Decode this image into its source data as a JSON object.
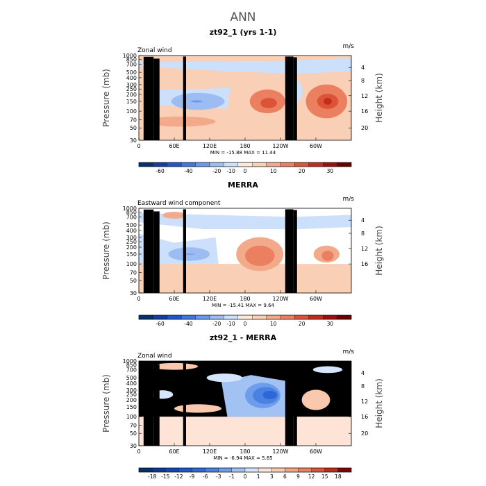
{
  "figure": {
    "suptitle": "ANN"
  },
  "panels": [
    {
      "title": "zt92_1 (yrs 1-1)",
      "left_label": "Zonal wind",
      "units": "m/s",
      "min_max": "MIN = -15.88   MAX =  11.44",
      "colorbar_ticks": [
        "-60",
        "-40",
        "-20",
        "-10",
        "0",
        "10",
        "20",
        "30"
      ],
      "colors": [
        "#08306b",
        "#123ea0",
        "#1f57c8",
        "#3f77dd",
        "#6a98ea",
        "#9cbcf2",
        "#cde0fb",
        "#fde9dc",
        "#f9cfb6",
        "#f2aa8a",
        "#ea8060",
        "#dd5338",
        "#c42b1c",
        "#9c0f0f",
        "#6b0000"
      ],
      "right_ticks": [
        "20",
        "16",
        "12",
        "8",
        "4"
      ],
      "height_min_mb": 30
    },
    {
      "title": "MERRA",
      "left_label": "Eastward wind component",
      "units": "m/s",
      "min_max": "MIN = -15.41   MAX =   9.64",
      "colorbar_ticks": [
        "-60",
        "-40",
        "-20",
        "-10",
        "0",
        "10",
        "20",
        "30"
      ],
      "colors": [
        "#08306b",
        "#123ea0",
        "#1f57c8",
        "#3f77dd",
        "#6a98ea",
        "#9cbcf2",
        "#cde0fb",
        "#fde9dc",
        "#f9cfb6",
        "#f2aa8a",
        "#ea8060",
        "#dd5338",
        "#c42b1c",
        "#9c0f0f",
        "#6b0000"
      ],
      "right_ticks": [
        "16",
        "12",
        "8",
        "4"
      ],
      "height_min_mb": 100
    },
    {
      "title": "zt92_1 - MERRA",
      "left_label": "Zonal wind",
      "units": "m/s",
      "min_max": "MIN =  -6.94   MAX =   5.85",
      "colorbar_ticks": [
        "-18",
        "-15",
        "-12",
        "-9",
        "-6",
        "-3",
        "-1",
        "0",
        "1",
        "3",
        "6",
        "9",
        "12",
        "15",
        "18"
      ],
      "colors": [
        "#08306b",
        "#0d3a94",
        "#1448b8",
        "#1f57c8",
        "#2e68d6",
        "#4a82e2",
        "#6f9ded",
        "#a3c2f4",
        "#d5e5fb",
        "#fde4d6",
        "#f9c8ad",
        "#f2a584",
        "#e9805f",
        "#da5536",
        "#c02c1c",
        "#7a0606"
      ],
      "right_ticks": [
        "20",
        "16",
        "12",
        "8",
        "4"
      ],
      "height_min_mb": 30
    }
  ],
  "chart_data": [
    {
      "type": "heatmap",
      "title": "zt92_1 (yrs 1-1)",
      "xlabel": "",
      "ylabel": "Pressure (mb)",
      "y2label": "Height (km)",
      "x_ticks": [
        "0",
        "60E",
        "120E",
        "180",
        "120W",
        "60W"
      ],
      "y_ticks": [
        "30",
        "50",
        "70",
        "100",
        "150",
        "200",
        "250",
        "300",
        "400",
        "500",
        "700",
        "850",
        "1000"
      ],
      "y_scale": "log-pressure",
      "ylim_mb": [
        1000,
        30
      ],
      "units": "m/s",
      "min": -15.88,
      "max": 11.44,
      "features": [
        {
          "kind": "westerly",
          "lon": 218,
          "p_mb": 150,
          "value": 7
        },
        {
          "kind": "westerly",
          "lon": 320,
          "p_mb": 150,
          "value": 11
        },
        {
          "kind": "easterly",
          "lon": 98,
          "p_mb": 150,
          "value": -12
        },
        {
          "kind": "easterly",
          "lon": 268,
          "p_mb": 200,
          "value": -3
        }
      ]
    },
    {
      "type": "heatmap",
      "title": "MERRA",
      "xlabel": "",
      "ylabel": "Pressure (mb)",
      "y2label": "Height (km)",
      "x_ticks": [
        "0",
        "60E",
        "120E",
        "180",
        "120W",
        "60W"
      ],
      "y_ticks": [
        "30",
        "50",
        "70",
        "100",
        "150",
        "200",
        "250",
        "300",
        "400",
        "500",
        "700",
        "850",
        "1000"
      ],
      "y_scale": "log-pressure",
      "ylim_mb": [
        1000,
        30
      ],
      "data_top_mb": 100,
      "units": "m/s",
      "min": -15.41,
      "max": 9.64,
      "features": [
        {
          "kind": "westerly",
          "lon": 205,
          "p_mb": 200,
          "value": 9
        },
        {
          "kind": "westerly",
          "lon": 320,
          "p_mb": 150,
          "value": 8
        },
        {
          "kind": "easterly",
          "lon": 85,
          "p_mb": 150,
          "value": -13
        },
        {
          "kind": "easterly",
          "lon": 250,
          "p_mb": 600,
          "value": -3
        }
      ]
    },
    {
      "type": "heatmap",
      "title": "zt92_1 - MERRA",
      "xlabel": "",
      "ylabel": "Pressure (mb)",
      "y2label": "Height (km)",
      "x_ticks": [
        "0",
        "60E",
        "120E",
        "180",
        "120W",
        "60W"
      ],
      "y_ticks": [
        "30",
        "50",
        "70",
        "100",
        "150",
        "200",
        "250",
        "300",
        "400",
        "500",
        "700",
        "850",
        "1000"
      ],
      "y_scale": "log-pressure",
      "ylim_mb": [
        1000,
        30
      ],
      "no_data_above_mb": 100,
      "units": "m/s",
      "min": -6.94,
      "max": 5.85,
      "features": [
        {
          "kind": "negative",
          "lon": 218,
          "p_mb": 250,
          "value": -6
        },
        {
          "kind": "positive",
          "lon": 300,
          "p_mb": 200,
          "value": 3
        },
        {
          "kind": "positive",
          "lon": 100,
          "p_mb": 150,
          "value": 2
        }
      ]
    }
  ]
}
